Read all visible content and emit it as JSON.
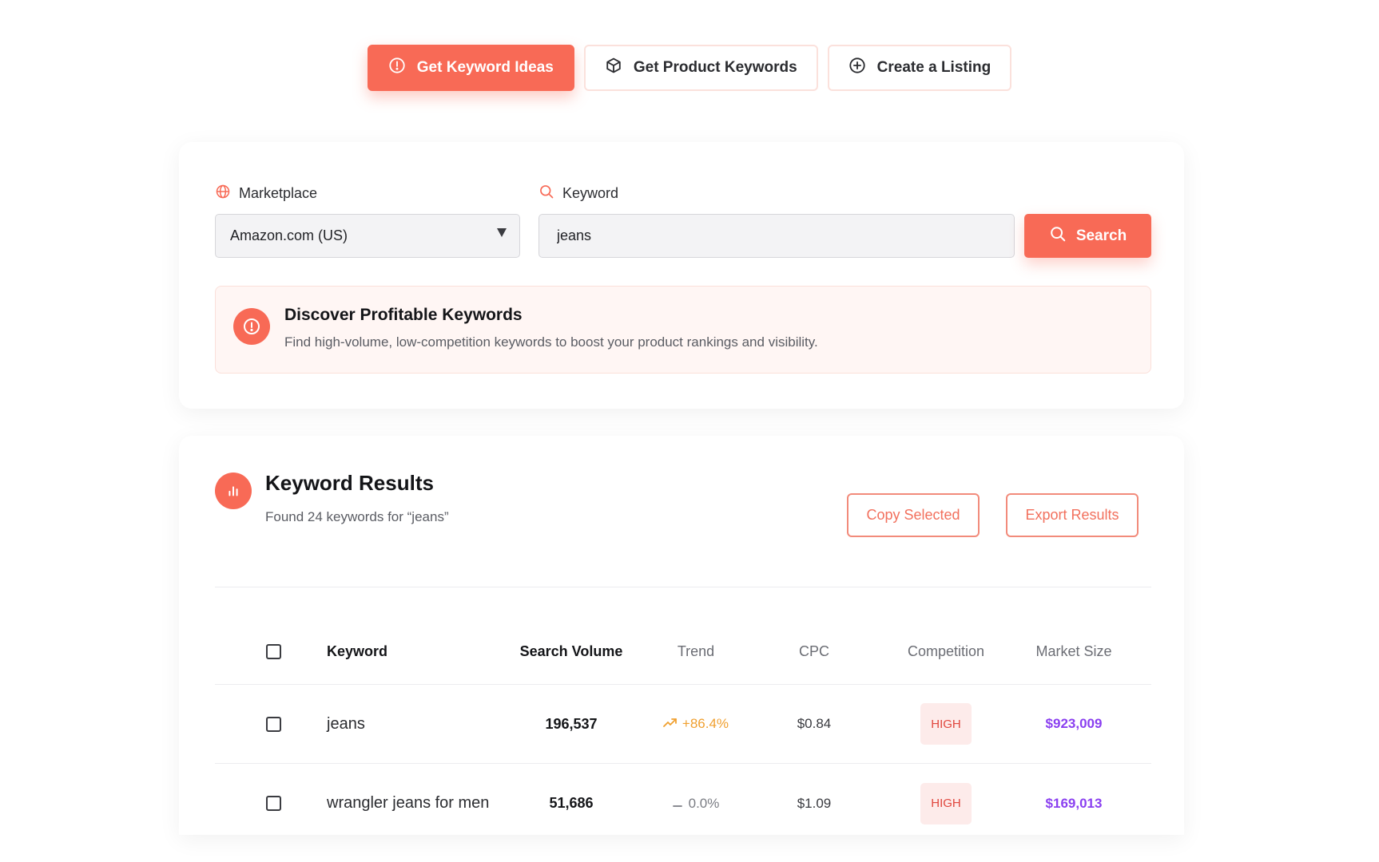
{
  "tabs": [
    {
      "label": "Get Keyword Ideas",
      "icon": "alert-circle-icon",
      "active": true
    },
    {
      "label": "Get Product Keywords",
      "icon": "package-icon",
      "active": false
    },
    {
      "label": "Create a Listing",
      "icon": "plus-circle-icon",
      "active": false
    }
  ],
  "search": {
    "marketplace_label": "Marketplace",
    "marketplace_value": "Amazon.com (US)",
    "keyword_label": "Keyword",
    "keyword_value": "jeans",
    "search_button": "Search"
  },
  "info": {
    "title": "Discover Profitable Keywords",
    "description": "Find high-volume, low-competition keywords to boost your product rankings and visibility."
  },
  "results": {
    "title": "Keyword Results",
    "subtitle": "Found 24 keywords for “jeans”",
    "copy_button": "Copy Selected",
    "export_button": "Export Results",
    "columns": [
      "Keyword",
      "Search Volume",
      "Trend",
      "CPC",
      "Competition",
      "Market Size"
    ],
    "rows": [
      {
        "keyword": "jeans",
        "volume": "196,537",
        "trend": "+86.4%",
        "trend_dir": "up",
        "cpc": "$0.84",
        "competition": "HIGH",
        "market_size": "$923,009"
      },
      {
        "keyword": "wrangler jeans for men",
        "volume": "51,686",
        "trend": "0.0%",
        "trend_dir": "flat",
        "cpc": "$1.09",
        "competition": "HIGH",
        "market_size": "$169,013"
      }
    ]
  },
  "colors": {
    "accent": "#f86a56",
    "trend_up": "#f0a030",
    "market_size": "#8a3ff0",
    "badge_text": "#e0463d"
  }
}
